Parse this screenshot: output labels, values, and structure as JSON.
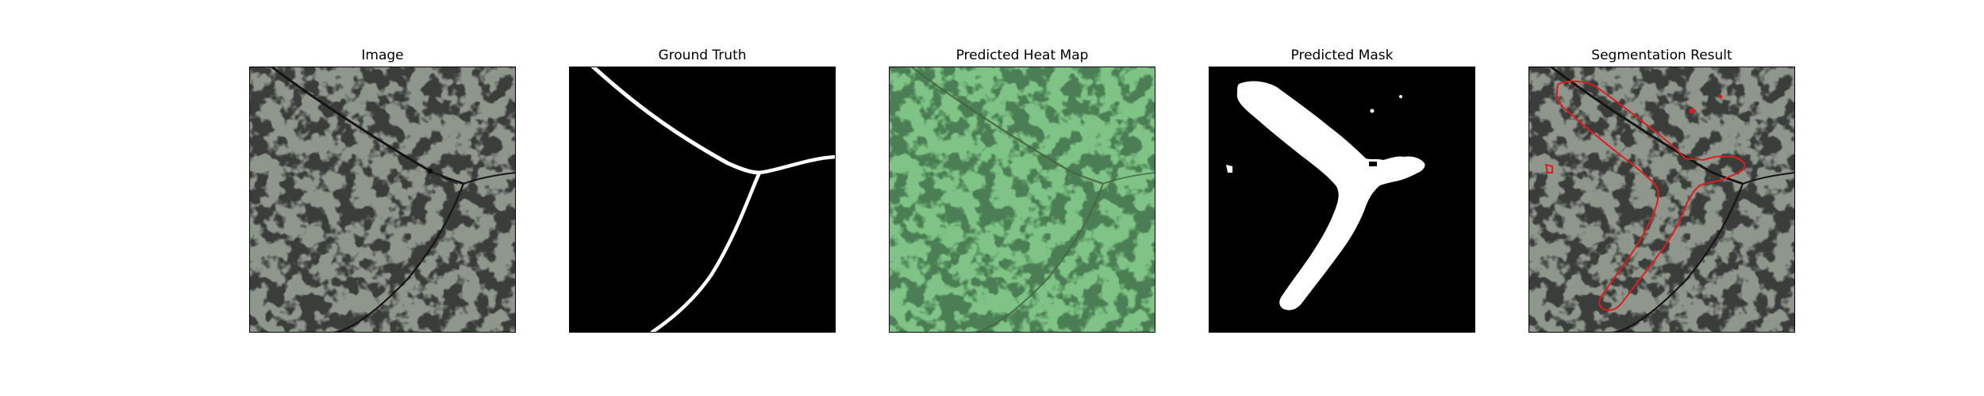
{
  "panels": [
    {
      "title": "Image"
    },
    {
      "title": "Ground Truth"
    },
    {
      "title": "Predicted Heat Map"
    },
    {
      "title": "Predicted Mask"
    },
    {
      "title": "Segmentation Result"
    }
  ],
  "colors": {
    "texture_light": "#8f978d",
    "texture_dark": "#3c3e3c",
    "crack": "#121212",
    "mask_background": "#000000",
    "mask_foreground": "#ffffff",
    "heat_overlay": "#7ddc8e",
    "contour": "#e31a1c"
  }
}
